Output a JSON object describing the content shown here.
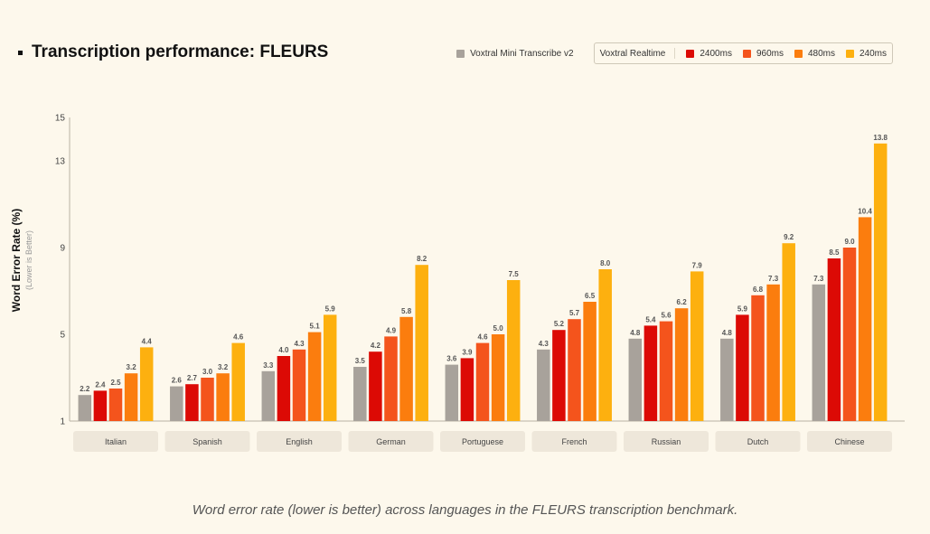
{
  "title": "Transcription performance: FLEURS",
  "caption": "Word error rate (lower is better) across languages in the FLEURS transcription benchmark.",
  "legend": {
    "baseline_label": "Voxtral Mini Transcribe v2",
    "group_label": "Voxtral Realtime",
    "items": [
      "2400ms",
      "960ms",
      "480ms",
      "240ms"
    ]
  },
  "colors": {
    "baseline": "#a8a29b",
    "s2400": "#dc0a05",
    "s960": "#f4541c",
    "s480": "#fb7d0e",
    "s240": "#fdb00f",
    "background": "#fdf8ec",
    "category_pill": "#eee7da"
  },
  "chart_data": {
    "type": "bar",
    "ylabel": "Word Error Rate (%)",
    "ysublabel": "(Lower is Better)",
    "ylim": [
      1,
      15
    ],
    "yticks": [
      1,
      5,
      9,
      13,
      15
    ],
    "categories": [
      "Italian",
      "Spanish",
      "English",
      "German",
      "Portuguese",
      "French",
      "Russian",
      "Dutch",
      "Chinese"
    ],
    "series": [
      {
        "name": "Voxtral Mini Transcribe v2",
        "values": [
          2.2,
          2.6,
          3.3,
          3.5,
          3.6,
          4.3,
          4.8,
          4.8,
          7.3
        ]
      },
      {
        "name": "2400ms",
        "values": [
          2.4,
          2.7,
          4.0,
          4.2,
          3.9,
          5.2,
          5.4,
          5.9,
          8.5
        ]
      },
      {
        "name": "960ms",
        "values": [
          2.5,
          3.0,
          4.3,
          4.9,
          4.6,
          5.7,
          5.6,
          6.8,
          9.0
        ]
      },
      {
        "name": "480ms",
        "values": [
          3.2,
          3.2,
          5.1,
          5.8,
          5.0,
          6.5,
          6.2,
          7.3,
          10.4
        ]
      },
      {
        "name": "240ms",
        "values": [
          4.4,
          4.6,
          5.9,
          8.2,
          7.5,
          8.0,
          7.9,
          9.2,
          13.8
        ]
      }
    ]
  }
}
